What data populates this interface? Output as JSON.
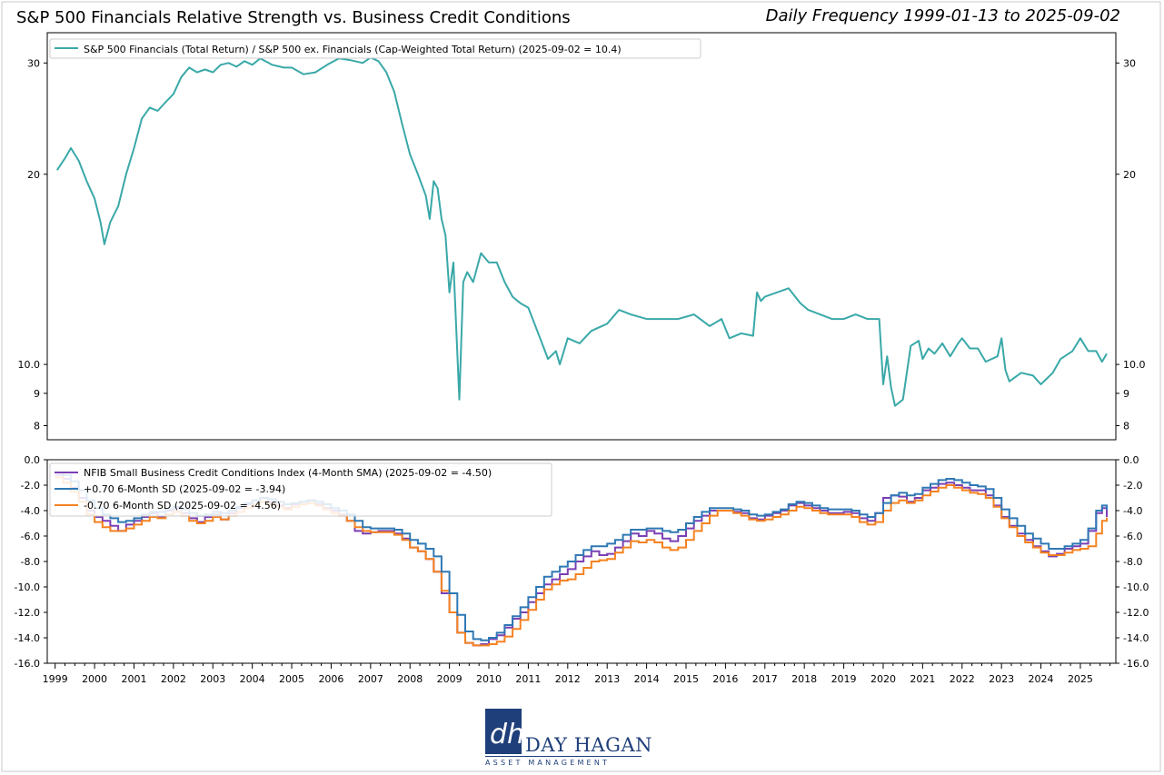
{
  "header": {
    "title": "S&P 500 Financials Relative Strength vs. Business Credit Conditions",
    "frequency": "Daily Frequency 1999-01-13 to 2025-09-02"
  },
  "logo": {
    "brand": "DAY HAGAN",
    "tagline": "ASSET MANAGEMENT",
    "mark": "dh"
  },
  "chart_data": [
    {
      "type": "line",
      "panel": "top",
      "yscale": "log",
      "ylim": [
        7.6,
        33.5
      ],
      "yticks": [
        8,
        9,
        10,
        20,
        30
      ],
      "ytick_labels": [
        "8",
        "9",
        "10.0",
        "20",
        "30"
      ],
      "legend_position": "top-left",
      "series": [
        {
          "name": "S&P 500 Financials (Total Return) / S&P 500 ex. Financials (Cap-Weighted Total Return) (2025-09-02 = 10.4)",
          "color": "#3aa8a8",
          "x": [
            1999.05,
            1999.25,
            1999.4,
            1999.6,
            1999.8,
            2000.0,
            2000.15,
            2000.25,
            2000.4,
            2000.6,
            2000.8,
            2001.0,
            2001.2,
            2001.4,
            2001.6,
            2001.8,
            2002.0,
            2002.2,
            2002.4,
            2002.6,
            2002.8,
            2003.0,
            2003.2,
            2003.4,
            2003.6,
            2003.8,
            2004.0,
            2004.2,
            2004.5,
            2004.8,
            2005.0,
            2005.3,
            2005.6,
            2005.9,
            2006.2,
            2006.5,
            2006.8,
            2007.0,
            2007.2,
            2007.4,
            2007.6,
            2007.8,
            2008.0,
            2008.2,
            2008.4,
            2008.5,
            2008.6,
            2008.7,
            2008.8,
            2008.9,
            2009.0,
            2009.1,
            2009.17,
            2009.25,
            2009.35,
            2009.45,
            2009.6,
            2009.8,
            2010.0,
            2010.2,
            2010.4,
            2010.6,
            2010.8,
            2011.0,
            2011.3,
            2011.5,
            2011.7,
            2011.8,
            2012.0,
            2012.3,
            2012.6,
            2013.0,
            2013.3,
            2013.6,
            2014.0,
            2014.4,
            2014.8,
            2015.2,
            2015.6,
            2015.9,
            2016.1,
            2016.4,
            2016.7,
            2016.8,
            2016.9,
            2017.0,
            2017.3,
            2017.6,
            2017.9,
            2018.1,
            2018.4,
            2018.7,
            2019.0,
            2019.3,
            2019.6,
            2019.9,
            2020.0,
            2020.1,
            2020.2,
            2020.3,
            2020.5,
            2020.7,
            2020.9,
            2021.0,
            2021.15,
            2021.3,
            2021.5,
            2021.7,
            2021.9,
            2022.0,
            2022.2,
            2022.4,
            2022.6,
            2022.9,
            2023.0,
            2023.1,
            2023.2,
            2023.3,
            2023.5,
            2023.8,
            2024.0,
            2024.3,
            2024.5,
            2024.8,
            2025.0,
            2025.2,
            2025.4,
            2025.55,
            2025.67
          ],
          "y": [
            20.3,
            21.2,
            22.0,
            21.0,
            19.5,
            18.3,
            16.8,
            15.5,
            16.8,
            17.8,
            20.0,
            22.0,
            24.5,
            25.5,
            25.2,
            26.0,
            26.8,
            28.5,
            29.5,
            29.0,
            29.3,
            29.0,
            29.8,
            30.0,
            29.6,
            30.2,
            29.8,
            30.5,
            29.8,
            29.5,
            29.5,
            28.8,
            29.0,
            29.8,
            30.5,
            30.3,
            30.0,
            30.6,
            30.2,
            29.0,
            27.0,
            24.0,
            21.5,
            20.0,
            18.5,
            17.0,
            19.5,
            19.0,
            17.0,
            16.0,
            13.0,
            14.5,
            11.5,
            8.8,
            13.5,
            14.0,
            13.5,
            15.0,
            14.5,
            14.5,
            13.5,
            12.8,
            12.5,
            12.3,
            11.0,
            10.2,
            10.5,
            10.0,
            11.0,
            10.8,
            11.3,
            11.6,
            12.2,
            12.0,
            11.8,
            11.8,
            11.8,
            12.0,
            11.5,
            11.8,
            11.0,
            11.2,
            11.1,
            13.0,
            12.6,
            12.8,
            13.0,
            13.2,
            12.5,
            12.2,
            12.0,
            11.8,
            11.8,
            12.0,
            11.8,
            11.8,
            9.3,
            10.3,
            9.2,
            8.6,
            8.8,
            10.7,
            10.9,
            10.2,
            10.6,
            10.4,
            10.8,
            10.3,
            10.8,
            11.0,
            10.6,
            10.6,
            10.1,
            10.3,
            11.0,
            9.8,
            9.4,
            9.5,
            9.7,
            9.6,
            9.3,
            9.7,
            10.2,
            10.5,
            11.0,
            10.5,
            10.5,
            10.1,
            10.4
          ]
        }
      ]
    },
    {
      "type": "line",
      "panel": "bottom",
      "ylim": [
        -16.0,
        0.0
      ],
      "yticks": [
        0.0,
        -2.0,
        -4.0,
        -6.0,
        -8.0,
        -10.0,
        -12.0,
        -14.0,
        -16.0
      ],
      "ytick_labels": [
        "0.0",
        "-2.0",
        "-4.0",
        "-6.0",
        "-8.0",
        "-10.0",
        "-12.0",
        "-14.0",
        "-16.0"
      ],
      "xlim": [
        1998.8,
        2025.9
      ],
      "xticks": [
        1999,
        2000,
        2001,
        2002,
        2003,
        2004,
        2005,
        2006,
        2007,
        2008,
        2009,
        2010,
        2011,
        2012,
        2013,
        2014,
        2015,
        2016,
        2017,
        2018,
        2019,
        2020,
        2021,
        2022,
        2023,
        2024,
        2025
      ],
      "xtick_labels": [
        "1999",
        "2000",
        "2001",
        "2002",
        "2003",
        "2004",
        "2005",
        "2006",
        "2007",
        "2008",
        "2009",
        "2010",
        "2011",
        "2012",
        "2013",
        "2014",
        "2015",
        "2016",
        "2017",
        "2018",
        "2019",
        "2020",
        "2021",
        "2022",
        "2023",
        "2024",
        "2025"
      ],
      "legend_position": "top-left",
      "x": [
        1999.0,
        1999.2,
        1999.4,
        1999.6,
        1999.8,
        2000.0,
        2000.2,
        2000.4,
        2000.6,
        2000.8,
        2001.0,
        2001.2,
        2001.4,
        2001.6,
        2001.8,
        2002.0,
        2002.2,
        2002.4,
        2002.6,
        2002.8,
        2003.0,
        2003.2,
        2003.4,
        2003.6,
        2003.8,
        2004.0,
        2004.2,
        2004.4,
        2004.6,
        2004.8,
        2005.0,
        2005.2,
        2005.4,
        2005.6,
        2005.8,
        2006.0,
        2006.2,
        2006.4,
        2006.6,
        2006.8,
        2007.0,
        2007.2,
        2007.4,
        2007.6,
        2007.8,
        2008.0,
        2008.2,
        2008.4,
        2008.6,
        2008.8,
        2009.0,
        2009.2,
        2009.4,
        2009.6,
        2009.8,
        2010.0,
        2010.2,
        2010.4,
        2010.6,
        2010.8,
        2011.0,
        2011.2,
        2011.4,
        2011.6,
        2011.8,
        2012.0,
        2012.2,
        2012.4,
        2012.6,
        2012.8,
        2013.0,
        2013.2,
        2013.4,
        2013.6,
        2013.8,
        2014.0,
        2014.2,
        2014.4,
        2014.6,
        2014.8,
        2015.0,
        2015.2,
        2015.4,
        2015.6,
        2015.8,
        2016.0,
        2016.2,
        2016.4,
        2016.6,
        2016.8,
        2017.0,
        2017.2,
        2017.4,
        2017.6,
        2017.8,
        2018.0,
        2018.2,
        2018.4,
        2018.6,
        2018.8,
        2019.0,
        2019.2,
        2019.4,
        2019.6,
        2019.8,
        2020.0,
        2020.2,
        2020.4,
        2020.6,
        2020.8,
        2021.0,
        2021.2,
        2021.4,
        2021.6,
        2021.8,
        2022.0,
        2022.2,
        2022.4,
        2022.6,
        2022.8,
        2023.0,
        2023.2,
        2023.4,
        2023.6,
        2023.8,
        2024.0,
        2024.2,
        2024.4,
        2024.6,
        2024.8,
        2025.0,
        2025.2,
        2025.4,
        2025.55,
        2025.67
      ],
      "series": [
        {
          "name": "NFIB Small Business Credit Conditions Index (4-Month SMA) (2025-09-02 = -4.50)",
          "color": "#7b3fb5",
          "values": [
            -1.2,
            -1.5,
            -2.2,
            -3.0,
            -4.0,
            -4.5,
            -4.8,
            -5.2,
            -5.6,
            -5.1,
            -4.8,
            -4.5,
            -4.2,
            -4.5,
            -4.0,
            -3.8,
            -4.2,
            -4.6,
            -4.9,
            -4.5,
            -4.3,
            -4.7,
            -4.2,
            -3.8,
            -3.5,
            -3.2,
            -3.0,
            -3.3,
            -3.6,
            -3.8,
            -3.5,
            -3.3,
            -3.2,
            -3.5,
            -3.8,
            -4.0,
            -4.3,
            -4.8,
            -5.6,
            -5.8,
            -5.7,
            -5.6,
            -5.6,
            -5.8,
            -6.2,
            -6.9,
            -7.2,
            -7.8,
            -8.8,
            -10.5,
            -12.0,
            -13.6,
            -14.4,
            -14.6,
            -14.5,
            -14.1,
            -13.8,
            -13.2,
            -12.5,
            -12.0,
            -11.2,
            -10.5,
            -9.8,
            -9.4,
            -9.0,
            -8.6,
            -8.0,
            -7.6,
            -7.2,
            -7.5,
            -7.4,
            -6.9,
            -6.4,
            -5.8,
            -6.0,
            -5.6,
            -5.8,
            -6.2,
            -6.4,
            -6.0,
            -5.4,
            -4.8,
            -4.4,
            -4.0,
            -4.0,
            -4.0,
            -4.1,
            -4.2,
            -4.6,
            -4.7,
            -4.4,
            -4.2,
            -4.0,
            -3.6,
            -3.4,
            -3.6,
            -3.8,
            -4.0,
            -4.2,
            -4.2,
            -4.1,
            -4.2,
            -4.6,
            -4.8,
            -4.2,
            -3.0,
            -2.8,
            -2.9,
            -3.3,
            -3.0,
            -2.4,
            -2.2,
            -1.9,
            -1.8,
            -2.0,
            -2.2,
            -2.4,
            -2.4,
            -2.8,
            -3.6,
            -4.5,
            -5.2,
            -5.8,
            -6.3,
            -6.8,
            -7.2,
            -7.6,
            -7.4,
            -7.0,
            -6.8,
            -6.6,
            -5.6,
            -4.2,
            -3.8,
            -4.5
          ]
        },
        {
          "name": "+0.70 6-Month SD (2025-09-02 = -3.94)",
          "color": "#2f78b4",
          "values": [
            -1.0,
            -1.2,
            -1.7,
            -2.4,
            -3.2,
            -3.8,
            -4.3,
            -4.6,
            -4.9,
            -4.8,
            -4.6,
            -4.3,
            -4.1,
            -4.1,
            -3.9,
            -3.7,
            -3.9,
            -4.2,
            -4.4,
            -4.3,
            -4.1,
            -4.2,
            -4.0,
            -3.7,
            -3.4,
            -3.2,
            -3.0,
            -3.1,
            -3.3,
            -3.5,
            -3.4,
            -3.3,
            -3.2,
            -3.3,
            -3.5,
            -3.8,
            -4.0,
            -4.3,
            -4.8,
            -5.3,
            -5.4,
            -5.4,
            -5.4,
            -5.5,
            -5.8,
            -6.3,
            -6.6,
            -7.0,
            -7.6,
            -8.8,
            -10.5,
            -12.2,
            -13.5,
            -14.1,
            -14.2,
            -14.0,
            -13.6,
            -13.0,
            -12.3,
            -11.6,
            -10.8,
            -10.0,
            -9.2,
            -8.8,
            -8.4,
            -8.0,
            -7.5,
            -7.1,
            -6.8,
            -6.8,
            -6.6,
            -6.3,
            -5.9,
            -5.5,
            -5.5,
            -5.4,
            -5.4,
            -5.6,
            -5.7,
            -5.5,
            -5.0,
            -4.5,
            -4.1,
            -3.8,
            -3.8,
            -3.8,
            -3.9,
            -4.0,
            -4.3,
            -4.4,
            -4.3,
            -4.1,
            -3.9,
            -3.5,
            -3.3,
            -3.4,
            -3.6,
            -3.8,
            -3.9,
            -3.9,
            -3.9,
            -4.0,
            -4.3,
            -4.5,
            -4.2,
            -3.4,
            -2.8,
            -2.6,
            -2.8,
            -2.7,
            -2.2,
            -1.9,
            -1.6,
            -1.5,
            -1.6,
            -1.8,
            -2.0,
            -2.1,
            -2.3,
            -3.0,
            -3.9,
            -4.6,
            -5.2,
            -5.8,
            -6.2,
            -6.6,
            -7.0,
            -7.0,
            -6.8,
            -6.6,
            -6.3,
            -5.4,
            -4.0,
            -3.6,
            -3.94
          ]
        },
        {
          "name": "-0.70 6-Month SD (2025-09-02 = -4.56)",
          "color": "#f58220",
          "values": [
            -1.4,
            -1.8,
            -2.5,
            -3.3,
            -4.3,
            -4.9,
            -5.3,
            -5.6,
            -5.6,
            -5.4,
            -5.1,
            -4.8,
            -4.5,
            -4.6,
            -4.3,
            -4.1,
            -4.4,
            -4.8,
            -5.0,
            -4.8,
            -4.5,
            -4.7,
            -4.4,
            -4.1,
            -3.8,
            -3.5,
            -3.3,
            -3.5,
            -3.7,
            -3.9,
            -3.7,
            -3.5,
            -3.4,
            -3.6,
            -3.9,
            -4.2,
            -4.4,
            -4.8,
            -5.3,
            -5.6,
            -5.7,
            -5.7,
            -5.7,
            -5.9,
            -6.3,
            -6.9,
            -7.2,
            -7.8,
            -8.8,
            -10.3,
            -12.0,
            -13.6,
            -14.4,
            -14.6,
            -14.6,
            -14.5,
            -14.3,
            -13.9,
            -13.3,
            -12.6,
            -11.8,
            -11.0,
            -10.2,
            -9.8,
            -9.5,
            -9.4,
            -9.0,
            -8.5,
            -8.0,
            -7.9,
            -7.8,
            -7.3,
            -6.9,
            -6.4,
            -6.5,
            -6.3,
            -6.5,
            -6.9,
            -7.1,
            -6.9,
            -6.3,
            -5.6,
            -5.0,
            -4.4,
            -4.0,
            -4.0,
            -4.2,
            -4.4,
            -4.7,
            -4.8,
            -4.7,
            -4.5,
            -4.3,
            -4.0,
            -3.7,
            -3.8,
            -4.0,
            -4.2,
            -4.3,
            -4.3,
            -4.3,
            -4.5,
            -4.9,
            -5.1,
            -4.9,
            -4.0,
            -3.4,
            -3.2,
            -3.4,
            -3.2,
            -2.8,
            -2.5,
            -2.2,
            -2.0,
            -2.2,
            -2.4,
            -2.6,
            -2.7,
            -3.0,
            -3.7,
            -4.6,
            -5.3,
            -6.0,
            -6.5,
            -6.9,
            -7.3,
            -7.5,
            -7.5,
            -7.3,
            -7.1,
            -7.0,
            -6.8,
            -5.8,
            -4.8,
            -4.56
          ]
        }
      ]
    }
  ]
}
